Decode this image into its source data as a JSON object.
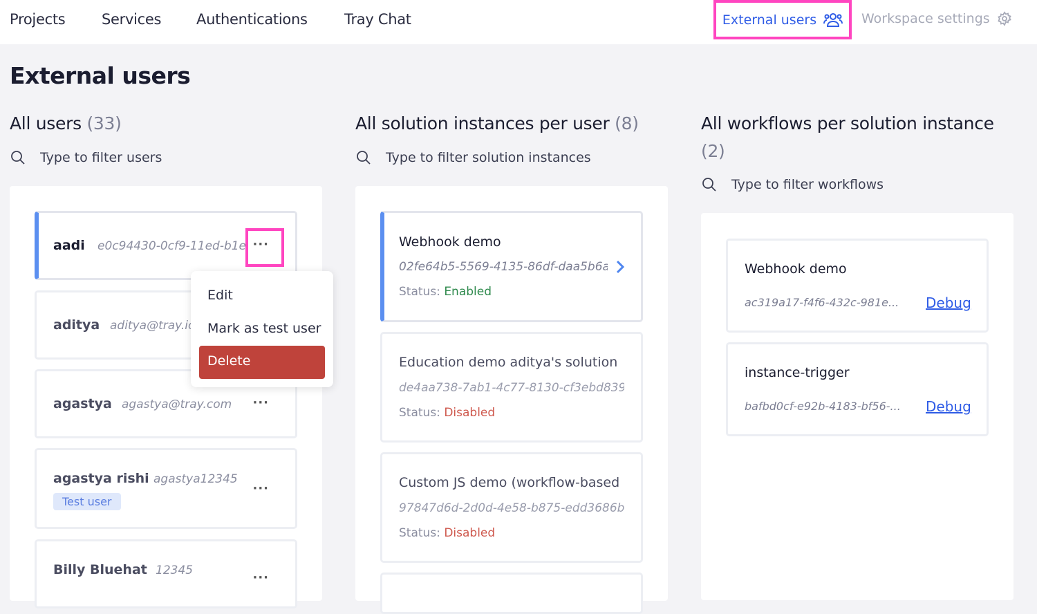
{
  "nav": {
    "items": [
      "Projects",
      "Services",
      "Authentications",
      "Tray Chat"
    ],
    "external_users": "External users",
    "workspace_settings": "Workspace settings",
    "active_color": "#2f5ce6",
    "highlight_color": "#ff45c0"
  },
  "page_title": "External users",
  "users": {
    "title": "All users",
    "count": "(33)",
    "filter_placeholder": "Type to filter users",
    "items": [
      {
        "name": "aadi",
        "id": "e0c94430-0cf9-11ed-b1e"
      },
      {
        "name": "aditya",
        "id": "aditya@tray.io"
      },
      {
        "name": "agastya",
        "id": "agastya@tray.com"
      },
      {
        "name": "agastya rishi",
        "id": "agastya12345",
        "badge": "Test user"
      },
      {
        "name": "Billy Bluehat",
        "id": "12345"
      }
    ],
    "more_label": "···"
  },
  "context_menu": {
    "edit": "Edit",
    "mark_test": "Mark as test user",
    "delete": "Delete"
  },
  "solutions": {
    "title": "All solution instances per user",
    "count": "(8)",
    "filter_placeholder": "Type to filter solution instances",
    "status_label": "Status:",
    "items": [
      {
        "name": "Webhook demo",
        "id": "02fe64b5-5569-4135-86df-daa5b6a",
        "status": "Enabled"
      },
      {
        "name": "Education demo aditya's solution",
        "id": "de4aa738-7ab1-4c77-8130-cf3ebd839",
        "status": "Disabled"
      },
      {
        "name": "Custom JS demo (workflow-based",
        "id": "97847d6d-2d0d-4e58-b875-edd3686b",
        "status": "Disabled"
      }
    ]
  },
  "workflows": {
    "title": "All workflows per solution instance",
    "count": "(2)",
    "filter_placeholder": "Type to filter workflows",
    "debug_label": "Debug",
    "items": [
      {
        "name": "Webhook demo",
        "id": "ac319a17-f4f6-432c-981e..."
      },
      {
        "name": "instance-trigger",
        "id": "bafbd0cf-e92b-4183-bf56-..."
      }
    ]
  }
}
